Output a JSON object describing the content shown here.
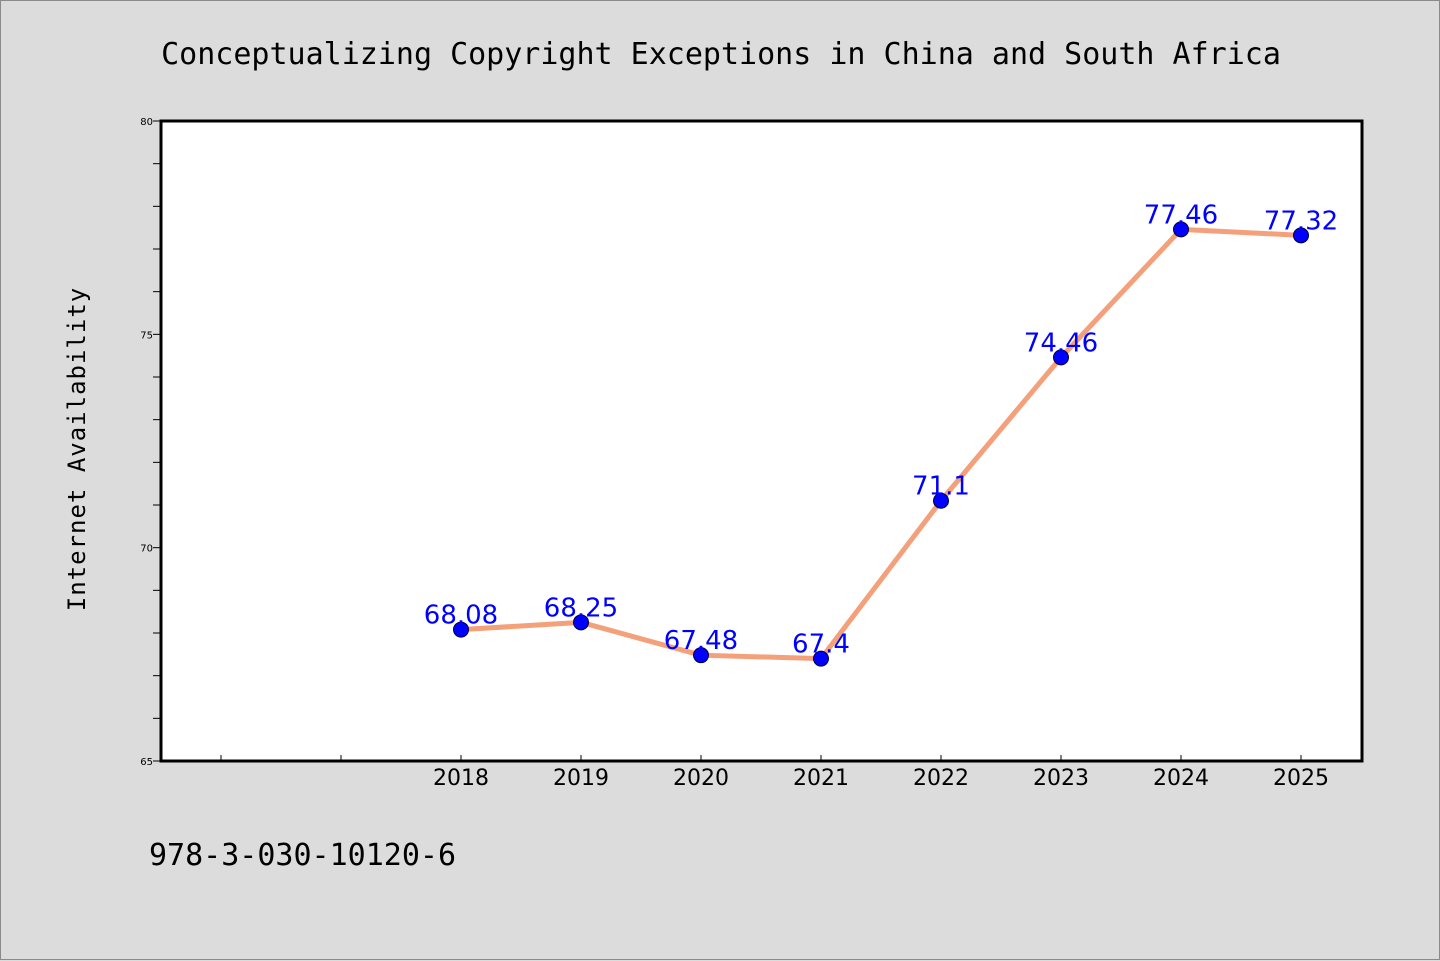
{
  "chart_data": {
    "type": "line",
    "title": "Conceptualizing Copyright Exceptions in China and South Africa",
    "ylabel": "Internet Availability",
    "xlabel": "",
    "categories": [
      "2018",
      "2019",
      "2020",
      "2021",
      "2022",
      "2023",
      "2024",
      "2025"
    ],
    "series": [
      {
        "values": [
          68.08,
          68.25,
          67.48,
          67.4,
          71.1,
          74.46,
          77.46,
          77.32
        ],
        "data_labels": [
          "68.08",
          "68.25",
          "67.48",
          "67.4",
          "71.1",
          "74.46",
          "77.46",
          "77.32"
        ],
        "line_color": "#f4a07a",
        "marker_color": "#0000ff"
      }
    ],
    "ylim": [
      65,
      80
    ],
    "yticks": [
      {
        "value": 65,
        "label": "65"
      },
      {
        "value": 70,
        "label": "70"
      },
      {
        "value": 75,
        "label": "75"
      },
      {
        "value": 80,
        "label": "80"
      }
    ],
    "x_slots_before_first": 2,
    "grid": false,
    "legend": "none",
    "colors": {
      "background": "#dcdcdc",
      "plot_background": "#ffffff",
      "axis": "#000000",
      "data_label": "#0000ff"
    }
  },
  "footer": {
    "isbn": "978-3-030-10120-6"
  }
}
